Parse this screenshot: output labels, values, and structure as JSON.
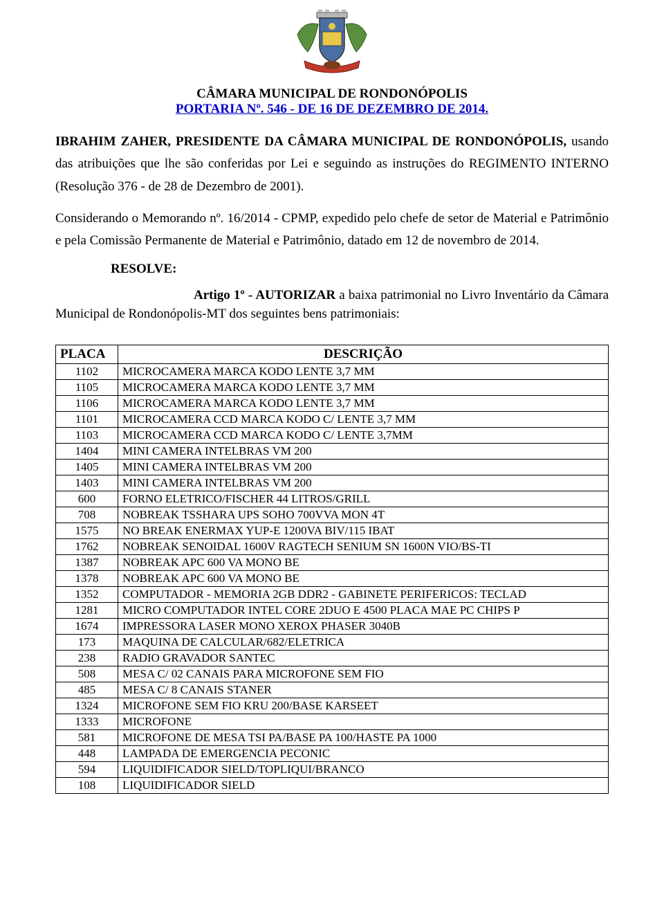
{
  "header": {
    "title": "CÂMARA MUNICIPAL DE RONDONÓPOLIS",
    "subtitle": "PORTARIA Nº. 546 - DE 16 DE DEZEMBRO DE 2014."
  },
  "paragraphs": {
    "p1_bold": "IBRAHIM ZAHER, PRESIDENTE DA CÂMARA MUNICIPAL DE RONDONÓPOLIS,",
    "p1_rest": " usando das atribuições que lhe são conferidas por Lei e seguindo as instruções do REGIMENTO INTERNO (Resolução 376 - de 28 de Dezembro de 2001).",
    "p2": "Considerando o Memorando nº. 16/2014 - CPMP, expedido pelo chefe de setor de Material e Patrimônio e pela Comissão Permanente de Material e Patrimônio, datado em 12 de novembro de 2014.",
    "resolve": "RESOLVE:",
    "artigo_bold": "Artigo 1º - AUTORIZAR",
    "artigo_rest": " a baixa patrimonial no Livro Inventário da Câmara Municipal de Rondonópolis-MT dos seguintes bens patrimoniais:"
  },
  "table": {
    "headers": {
      "placa": "PLACA",
      "descricao": "DESCRIÇÃO"
    },
    "rows": [
      {
        "placa": "1102",
        "desc": "MICROCAMERA MARCA KODO LENTE 3,7 MM"
      },
      {
        "placa": "1105",
        "desc": "MICROCAMERA MARCA KODO LENTE 3,7 MM"
      },
      {
        "placa": "1106",
        "desc": "MICROCAMERA MARCA KODO LENTE 3,7 MM"
      },
      {
        "placa": "1101",
        "desc": "MICROCAMERA CCD MARCA KODO C/ LENTE 3,7 MM"
      },
      {
        "placa": "1103",
        "desc": "MICROCAMERA CCD MARCA KODO C/ LENTE 3,7MM"
      },
      {
        "placa": "1404",
        "desc": "MINI CAMERA INTELBRAS VM 200"
      },
      {
        "placa": "1405",
        "desc": "MINI CAMERA INTELBRAS VM 200"
      },
      {
        "placa": "1403",
        "desc": "MINI CAMERA INTELBRAS VM 200"
      },
      {
        "placa": "600",
        "desc": "FORNO ELETRICO/FISCHER 44 LITROS/GRILL"
      },
      {
        "placa": "708",
        "desc": "NOBREAK  TSSHARA UPS SOHO 700VVA MON 4T"
      },
      {
        "placa": "1575",
        "desc": "NO BREAK ENERMAX YUP-E 1200VA BIV/115 IBAT"
      },
      {
        "placa": "1762",
        "desc": "NOBREAK SENOIDAL 1600V RAGTECH SENIUM SN 1600N VIO/BS-TI"
      },
      {
        "placa": "1387",
        "desc": "NOBREAK APC 600 VA MONO BE"
      },
      {
        "placa": "1378",
        "desc": "NOBREAK APC 600 VA MONO BE"
      },
      {
        "placa": "1352",
        "desc": "COMPUTADOR - MEMORIA 2GB DDR2 - GABINETE PERIFERICOS: TECLAD"
      },
      {
        "placa": "1281",
        "desc": "MICRO COMPUTADOR INTEL CORE 2DUO E 4500 PLACA MAE PC CHIPS P"
      },
      {
        "placa": "1674",
        "desc": "IMPRESSORA LASER MONO XEROX PHASER 3040B"
      },
      {
        "placa": "173",
        "desc": "MAQUINA DE CALCULAR/682/ELETRICA"
      },
      {
        "placa": "238",
        "desc": "RADIO GRAVADOR SANTEC"
      },
      {
        "placa": "508",
        "desc": "MESA C/ 02 CANAIS PARA MICROFONE SEM FIO"
      },
      {
        "placa": "485",
        "desc": "MESA C/ 8 CANAIS STANER"
      },
      {
        "placa": "1324",
        "desc": "MICROFONE SEM FIO KRU 200/BASE KARSEET"
      },
      {
        "placa": "1333",
        "desc": "MICROFONE"
      },
      {
        "placa": "581",
        "desc": "MICROFONE DE MESA TSI PA/BASE PA 100/HASTE PA 1000"
      },
      {
        "placa": "448",
        "desc": "LAMPADA DE EMERGENCIA PECONIC"
      },
      {
        "placa": "594",
        "desc": "LIQUIDIFICADOR SIELD/TOPLIQUI/BRANCO"
      },
      {
        "placa": "108",
        "desc": "LIQUIDIFICADOR SIELD"
      }
    ]
  },
  "styling": {
    "page_bg": "#ffffff",
    "text_color": "#000000",
    "link_color": "#0000cc",
    "body_font_size": 19,
    "table_font_size": 17,
    "font_family": "Times New Roman"
  }
}
